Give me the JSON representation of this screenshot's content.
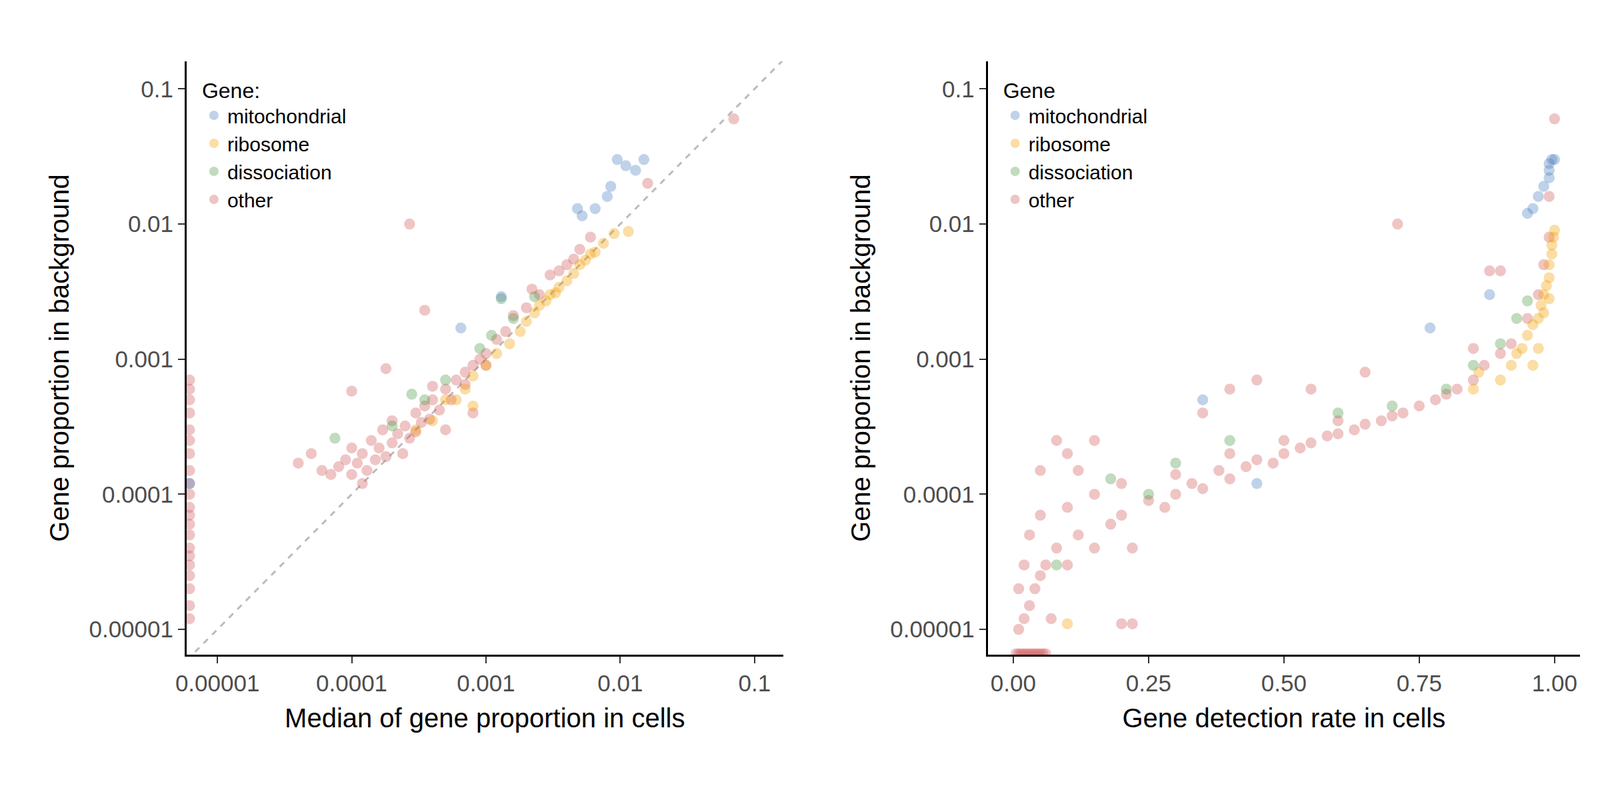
{
  "chart_data": [
    {
      "type": "scatter",
      "log": true,
      "grid": false,
      "legend": "top-left",
      "legend_title": "Gene:",
      "x_label": "Median of gene proportion in cells",
      "y_label": "Gene proportion in background",
      "xlim": [
        5.9e-06,
        0.163
      ],
      "ylim": [
        6.5e-06,
        0.16
      ],
      "xticks": [
        1e-05,
        0.0001,
        0.001,
        0.01,
        0.1
      ],
      "yticks": [
        1e-05,
        0.0001,
        0.001,
        0.01,
        0.1
      ],
      "series": [
        {
          "name": "mitochondrial",
          "color": "#4a7fc1",
          "x": [
            0.0048,
            0.0052,
            0.0065,
            0.008,
            0.0085,
            0.0095,
            0.011,
            0.013,
            0.015,
            0.0013,
            0.00065,
            6.2e-06
          ],
          "y": [
            0.013,
            0.0115,
            0.013,
            0.016,
            0.019,
            0.03,
            0.027,
            0.025,
            0.03,
            0.0029,
            0.0017,
            0.00012
          ]
        },
        {
          "name": "ribosome",
          "color": "#f5a000",
          "x": [
            0.0003,
            0.0004,
            0.0005,
            0.0007,
            0.0008,
            0.001,
            0.0012,
            0.0015,
            0.0018,
            0.002,
            0.0023,
            0.0025,
            0.0028,
            0.003,
            0.0033,
            0.0035,
            0.004,
            0.0045,
            0.005,
            0.0055,
            0.006,
            0.0065,
            0.0075,
            0.009,
            0.0115,
            0.0008,
            0.0006
          ],
          "y": [
            0.0003,
            0.00035,
            0.0005,
            0.0006,
            0.00075,
            0.0009,
            0.0011,
            0.0013,
            0.0016,
            0.0019,
            0.0022,
            0.0025,
            0.0027,
            0.003,
            0.0031,
            0.0034,
            0.0038,
            0.0043,
            0.005,
            0.0054,
            0.006,
            0.0062,
            0.0072,
            0.0085,
            0.0088,
            0.00045,
            0.0005
          ]
        },
        {
          "name": "dissociation",
          "color": "#4c9a45",
          "x": [
            7.5e-05,
            0.00028,
            0.0013,
            0.0023,
            0.0011,
            0.0009,
            0.0005,
            0.00035,
            0.0002,
            0.0016
          ],
          "y": [
            0.00026,
            0.00055,
            0.0028,
            0.0029,
            0.0015,
            0.0012,
            0.0007,
            0.0005,
            0.00032,
            0.002
          ]
        },
        {
          "name": "other",
          "color": "#d45a5a",
          "x": [
            6.2e-06,
            6.2e-06,
            6.2e-06,
            6.2e-06,
            6.2e-06,
            6.2e-06,
            6.2e-06,
            6.2e-06,
            6.2e-06,
            6.2e-06,
            6.2e-06,
            6.2e-06,
            6.2e-06,
            6.2e-06,
            6.2e-06,
            6.2e-06,
            6.2e-06,
            6.2e-06,
            6.2e-06,
            6.2e-06,
            6.2e-06,
            4e-05,
            5e-05,
            6e-05,
            7e-05,
            8e-05,
            9e-05,
            0.0001,
            0.0001,
            0.00011,
            0.00012,
            0.00013,
            0.00014,
            0.00015,
            0.00016,
            0.00017,
            0.00018,
            0.0002,
            0.0002,
            0.00022,
            0.00024,
            0.00025,
            0.00027,
            0.0003,
            0.0003,
            0.00033,
            0.00035,
            0.00038,
            0.0004,
            0.00045,
            0.0005,
            0.00055,
            0.0006,
            0.0007,
            0.0007,
            0.0008,
            0.0009,
            0.001,
            0.001,
            0.0012,
            0.0014,
            0.0016,
            0.002,
            0.0022,
            0.0025,
            0.003,
            0.0035,
            0.004,
            0.0045,
            0.005,
            0.006,
            0.0004,
            0.00018,
            0.0001,
            0.00035,
            0.00027,
            0.07,
            0.016,
            0.00012,
            0.0005,
            0.0008
          ],
          "y": [
            1.2e-05,
            1.5e-05,
            2e-05,
            2.5e-05,
            3e-05,
            3.5e-05,
            4e-05,
            5e-05,
            6e-05,
            7e-05,
            8e-05,
            0.0001,
            0.00012,
            0.00015,
            0.0002,
            0.00025,
            0.0003,
            0.0004,
            0.0005,
            0.0006,
            0.0007,
            0.00017,
            0.0002,
            0.00015,
            0.00014,
            0.00016,
            0.00018,
            0.00014,
            0.00022,
            0.00017,
            0.0002,
            0.00015,
            0.00025,
            0.00018,
            0.00022,
            0.0003,
            0.00019,
            0.00024,
            0.00035,
            0.00028,
            0.0002,
            0.00032,
            0.00026,
            0.0004,
            0.00029,
            0.00034,
            0.00045,
            0.00036,
            0.0005,
            0.00042,
            0.0006,
            0.0005,
            0.0007,
            0.0008,
            0.00065,
            0.0009,
            0.001,
            0.0011,
            0.0009,
            0.0014,
            0.0016,
            0.0021,
            0.0024,
            0.0033,
            0.003,
            0.0042,
            0.0045,
            0.005,
            0.0055,
            0.0065,
            0.008,
            0.00063,
            0.00085,
            0.00058,
            0.0023,
            0.01,
            0.06,
            0.02,
            0.00012,
            0.0003,
            0.0004
          ]
        }
      ]
    },
    {
      "type": "scatter",
      "log": "y",
      "grid": false,
      "legend": "top-left",
      "legend_title": "Gene",
      "x_label": "Gene detection rate in cells",
      "y_label": "Gene proportion in background",
      "xlim": [
        -0.047,
        1.047
      ],
      "ylim": [
        6.5e-06,
        0.16
      ],
      "xticks": [
        {
          "value": 0,
          "label": "0.00"
        },
        {
          "value": 0.25,
          "label": "0.25"
        },
        {
          "value": 0.5,
          "label": "0.50"
        },
        {
          "value": 0.75,
          "label": "0.75"
        },
        {
          "value": 1,
          "label": "1.00"
        }
      ],
      "yticks": [
        1e-05,
        0.0001,
        0.001,
        0.01,
        0.1
      ],
      "series": [
        {
          "name": "mitochondrial",
          "color": "#4a7fc1",
          "x": [
            0.95,
            0.96,
            0.97,
            0.98,
            0.99,
            0.99,
            0.995,
            1.0,
            0.99,
            0.77,
            0.88,
            0.35,
            0.45
          ],
          "y": [
            0.012,
            0.013,
            0.016,
            0.019,
            0.022,
            0.028,
            0.03,
            0.03,
            0.025,
            0.0017,
            0.003,
            0.0005,
            0.00012
          ]
        },
        {
          "name": "ribosome",
          "color": "#f5a000",
          "x": [
            0.9,
            0.92,
            0.94,
            0.95,
            0.96,
            0.97,
            0.975,
            0.98,
            0.985,
            0.99,
            0.99,
            0.995,
            0.995,
            0.998,
            1.0,
            0.97,
            0.96,
            0.98,
            0.99,
            0.85,
            0.1,
            0.86,
            0.93
          ],
          "y": [
            0.0007,
            0.0009,
            0.0012,
            0.0015,
            0.0018,
            0.002,
            0.0025,
            0.003,
            0.0035,
            0.004,
            0.005,
            0.006,
            0.007,
            0.008,
            0.009,
            0.0012,
            0.0009,
            0.0022,
            0.0028,
            0.0006,
            1.1e-05,
            0.0008,
            0.0011
          ]
        },
        {
          "name": "dissociation",
          "color": "#4c9a45",
          "x": [
            0.18,
            0.7,
            0.8,
            0.85,
            0.9,
            0.93,
            0.95,
            0.6,
            0.4,
            0.3,
            0.08,
            0.25
          ],
          "y": [
            0.00013,
            0.00045,
            0.0006,
            0.0009,
            0.0013,
            0.002,
            0.0027,
            0.0004,
            0.00025,
            0.00017,
            3e-05,
            0.0001
          ]
        },
        {
          "name": "other",
          "color": "#d45a5a",
          "x": [
            0.005,
            0.01,
            0.015,
            0.02,
            0.025,
            0.03,
            0.035,
            0.04,
            0.045,
            0.05,
            0.055,
            0.06,
            0.01,
            0.01,
            0.02,
            0.02,
            0.03,
            0.03,
            0.04,
            0.05,
            0.05,
            0.06,
            0.07,
            0.08,
            0.1,
            0.1,
            0.12,
            0.12,
            0.15,
            0.15,
            0.18,
            0.2,
            0.2,
            0.22,
            0.22,
            0.25,
            0.28,
            0.3,
            0.3,
            0.33,
            0.35,
            0.38,
            0.4,
            0.4,
            0.43,
            0.45,
            0.48,
            0.5,
            0.5,
            0.53,
            0.55,
            0.58,
            0.6,
            0.6,
            0.63,
            0.65,
            0.68,
            0.7,
            0.72,
            0.75,
            0.78,
            0.8,
            0.82,
            0.85,
            0.87,
            0.9,
            0.92,
            0.95,
            0.97,
            0.98,
            0.99,
            1.0,
            0.99,
            0.71,
            0.45,
            0.35,
            0.4,
            0.55,
            0.85,
            0.88,
            0.9,
            0.08,
            0.1,
            0.05,
            0.2,
            0.15,
            0.65
          ],
          "y": [
            6.6e-06,
            6.6e-06,
            6.6e-06,
            6.6e-06,
            6.6e-06,
            6.6e-06,
            6.6e-06,
            6.6e-06,
            6.6e-06,
            6.6e-06,
            6.6e-06,
            6.6e-06,
            1e-05,
            2e-05,
            1.2e-05,
            3e-05,
            1.5e-05,
            5e-05,
            2e-05,
            2.5e-05,
            7e-05,
            3e-05,
            1.2e-05,
            4e-05,
            3e-05,
            8e-05,
            5e-05,
            0.00015,
            4e-05,
            0.0001,
            6e-05,
            7e-05,
            0.00012,
            4e-05,
            1.1e-05,
            9e-05,
            8e-05,
            0.0001,
            0.00014,
            0.00012,
            0.00011,
            0.00015,
            0.00013,
            0.0002,
            0.00016,
            0.00018,
            0.00017,
            0.0002,
            0.00025,
            0.00022,
            0.00024,
            0.00027,
            0.00028,
            0.00035,
            0.0003,
            0.00033,
            0.00035,
            0.00038,
            0.0004,
            0.00045,
            0.0005,
            0.00055,
            0.0006,
            0.0007,
            0.0009,
            0.0011,
            0.0013,
            0.002,
            0.003,
            0.005,
            0.008,
            0.06,
            0.016,
            0.01,
            0.0007,
            0.0004,
            0.0006,
            0.0006,
            0.0012,
            0.0045,
            0.0045,
            0.00025,
            0.0002,
            0.00015,
            1.1e-05,
            0.00025,
            0.0008
          ]
        }
      ]
    }
  ]
}
